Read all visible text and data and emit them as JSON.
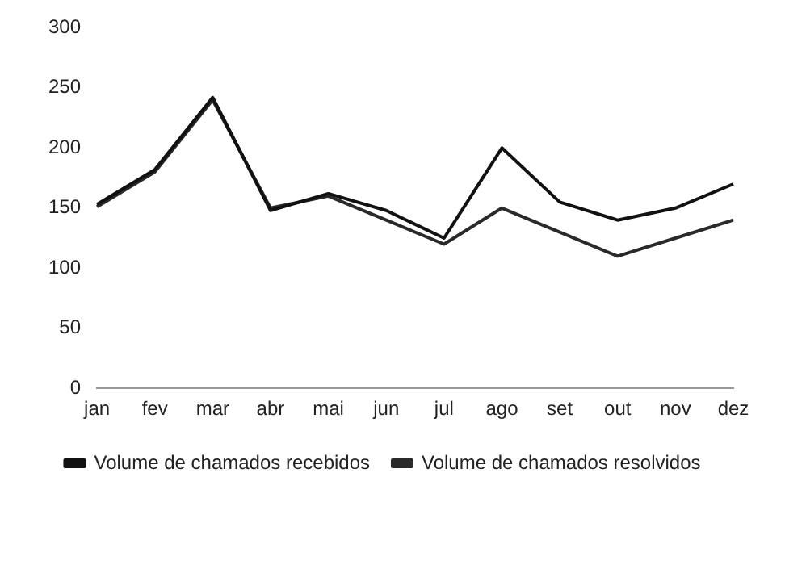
{
  "chart_data": {
    "type": "line",
    "categories": [
      "jan",
      "fev",
      "mar",
      "abr",
      "mai",
      "jun",
      "jul",
      "ago",
      "set",
      "out",
      "nov",
      "dez"
    ],
    "series": [
      {
        "name": "Volume de chamados recebidos",
        "color": "#111111",
        "values": [
          153,
          182,
          242,
          148,
          162,
          148,
          125,
          200,
          155,
          140,
          150,
          170
        ]
      },
      {
        "name": "Volume de chamados resolvidos",
        "color": "#2a2a2a",
        "values": [
          151,
          180,
          240,
          150,
          160,
          140,
          120,
          150,
          130,
          110,
          125,
          140
        ]
      }
    ],
    "ylim": [
      0,
      300
    ],
    "yticks": [
      0,
      50,
      100,
      150,
      200,
      250,
      300
    ],
    "grid": false,
    "legend": "bottom",
    "marker": "none",
    "line_style": "solid"
  }
}
